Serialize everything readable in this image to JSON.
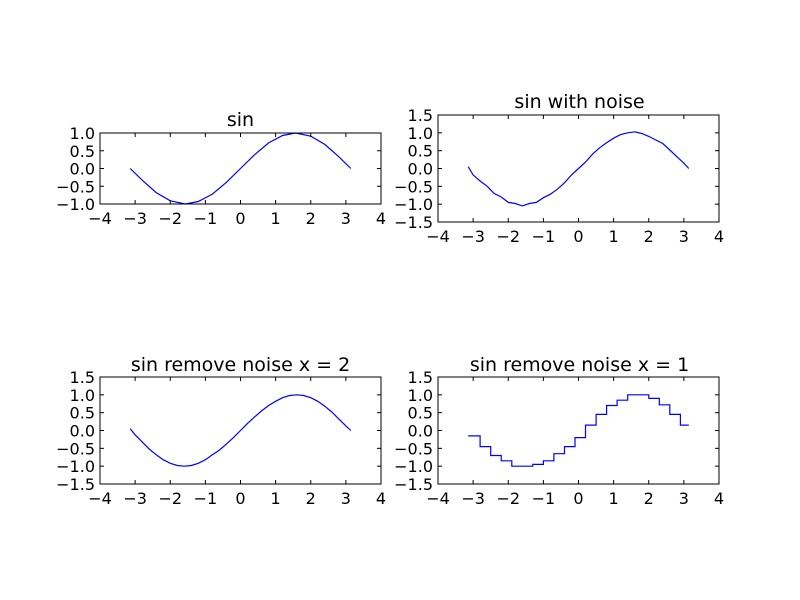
{
  "chart_data": [
    {
      "type": "line",
      "title": "sin",
      "xlabel": "",
      "ylabel": "",
      "xlim": [
        -4,
        4
      ],
      "ylim": [
        -1.0,
        1.0
      ],
      "xticks": [
        -4,
        -3,
        -2,
        -1,
        0,
        1,
        2,
        3,
        4
      ],
      "xtick_labels": [
        "−4",
        "−3",
        "−2",
        "−1",
        "0",
        "1",
        "2",
        "3",
        "4"
      ],
      "yticks": [
        -1.0,
        -0.5,
        0.0,
        0.5,
        1.0
      ],
      "ytick_labels": [
        "−1.0",
        "−0.5",
        "0.0",
        "0.5",
        "1.0"
      ],
      "grid": false,
      "line_color": "#0000ff",
      "series": [
        {
          "x": [
            -3.14,
            -2.8,
            -2.4,
            -2.0,
            -1.57,
            -1.2,
            -0.8,
            -0.4,
            0.0,
            0.4,
            0.8,
            1.2,
            1.57,
            2.0,
            2.4,
            2.8,
            3.14
          ],
          "values": [
            0.0,
            -0.33,
            -0.68,
            -0.91,
            -1.0,
            -0.93,
            -0.72,
            -0.39,
            0.0,
            0.39,
            0.72,
            0.93,
            1.0,
            0.91,
            0.68,
            0.33,
            0.0
          ]
        }
      ]
    },
    {
      "type": "line",
      "title": "sin with noise",
      "xlabel": "",
      "ylabel": "",
      "xlim": [
        -4,
        4
      ],
      "ylim": [
        -1.5,
        1.5
      ],
      "xticks": [
        -4,
        -3,
        -2,
        -1,
        0,
        1,
        2,
        3,
        4
      ],
      "xtick_labels": [
        "−4",
        "−3",
        "−2",
        "−1",
        "0",
        "1",
        "2",
        "3",
        "4"
      ],
      "yticks": [
        -1.5,
        -1.0,
        -0.5,
        0.0,
        0.5,
        1.0,
        1.5
      ],
      "ytick_labels": [
        "−1.5",
        "−1.0",
        "−0.5",
        "0.0",
        "0.5",
        "1.0",
        "1.5"
      ],
      "grid": false,
      "line_color": "#0000ff",
      "series": [
        {
          "x": [
            -3.14,
            -3.0,
            -2.8,
            -2.6,
            -2.4,
            -2.2,
            -2.0,
            -1.8,
            -1.6,
            -1.4,
            -1.2,
            -1.0,
            -0.8,
            -0.6,
            -0.4,
            -0.2,
            0.0,
            0.2,
            0.4,
            0.6,
            0.8,
            1.0,
            1.2,
            1.4,
            1.6,
            1.8,
            2.0,
            2.2,
            2.4,
            2.6,
            2.8,
            3.0,
            3.14
          ],
          "values": [
            0.05,
            -0.18,
            -0.35,
            -0.5,
            -0.7,
            -0.8,
            -0.95,
            -0.98,
            -1.05,
            -0.98,
            -0.95,
            -0.82,
            -0.72,
            -0.58,
            -0.4,
            -0.18,
            0.0,
            0.18,
            0.4,
            0.58,
            0.72,
            0.85,
            0.95,
            1.0,
            1.03,
            0.98,
            0.9,
            0.8,
            0.7,
            0.52,
            0.33,
            0.15,
            0.0
          ]
        }
      ]
    },
    {
      "type": "line",
      "title": "sin remove noise x = 2",
      "xlabel": "",
      "ylabel": "",
      "xlim": [
        -4,
        4
      ],
      "ylim": [
        -1.5,
        1.5
      ],
      "xticks": [
        -4,
        -3,
        -2,
        -1,
        0,
        1,
        2,
        3,
        4
      ],
      "xtick_labels": [
        "−4",
        "−3",
        "−2",
        "−1",
        "0",
        "1",
        "2",
        "3",
        "4"
      ],
      "yticks": [
        -1.5,
        -1.0,
        -0.5,
        0.0,
        0.5,
        1.0,
        1.5
      ],
      "ytick_labels": [
        "−1.5",
        "−1.0",
        "−0.5",
        "0.0",
        "0.5",
        "1.0",
        "1.5"
      ],
      "grid": false,
      "line_color": "#0000ff",
      "series": [
        {
          "x": [
            -3.14,
            -3.0,
            -2.8,
            -2.6,
            -2.4,
            -2.2,
            -2.0,
            -1.8,
            -1.6,
            -1.4,
            -1.2,
            -1.0,
            -0.8,
            -0.6,
            -0.4,
            -0.2,
            0.0,
            0.2,
            0.4,
            0.6,
            0.8,
            1.0,
            1.2,
            1.4,
            1.6,
            1.8,
            2.0,
            2.2,
            2.4,
            2.6,
            2.8,
            3.0,
            3.14
          ],
          "values": [
            0.05,
            -0.12,
            -0.32,
            -0.52,
            -0.68,
            -0.82,
            -0.92,
            -0.98,
            -1.0,
            -0.98,
            -0.92,
            -0.82,
            -0.68,
            -0.55,
            -0.38,
            -0.2,
            0.0,
            0.2,
            0.38,
            0.55,
            0.7,
            0.82,
            0.92,
            0.98,
            1.0,
            0.98,
            0.92,
            0.82,
            0.68,
            0.52,
            0.32,
            0.13,
            0.0
          ]
        }
      ]
    },
    {
      "type": "line",
      "title": "sin remove noise x = 1",
      "xlabel": "",
      "ylabel": "",
      "xlim": [
        -4,
        4
      ],
      "ylim": [
        -1.5,
        1.5
      ],
      "xticks": [
        -4,
        -3,
        -2,
        -1,
        0,
        1,
        2,
        3,
        4
      ],
      "xtick_labels": [
        "−4",
        "−3",
        "−2",
        "−1",
        "0",
        "1",
        "2",
        "3",
        "4"
      ],
      "yticks": [
        -1.5,
        -1.0,
        -0.5,
        0.0,
        0.5,
        1.0,
        1.5
      ],
      "ytick_labels": [
        "−1.5",
        "−1.0",
        "−0.5",
        "0.0",
        "0.5",
        "1.0",
        "1.5"
      ],
      "grid": false,
      "line_color": "#0000ff",
      "step": true,
      "series": [
        {
          "x": [
            -3.14,
            -2.8,
            -2.5,
            -2.2,
            -1.9,
            -1.6,
            -1.3,
            -1.0,
            -0.7,
            -0.4,
            -0.1,
            0.2,
            0.5,
            0.8,
            1.1,
            1.4,
            1.7,
            2.0,
            2.3,
            2.6,
            2.9,
            3.14
          ],
          "values": [
            -0.15,
            -0.45,
            -0.7,
            -0.85,
            -1.0,
            -1.0,
            -0.95,
            -0.85,
            -0.65,
            -0.45,
            -0.2,
            0.15,
            0.45,
            0.7,
            0.85,
            1.0,
            1.0,
            0.9,
            0.72,
            0.45,
            0.15,
            0.15
          ]
        }
      ]
    }
  ]
}
